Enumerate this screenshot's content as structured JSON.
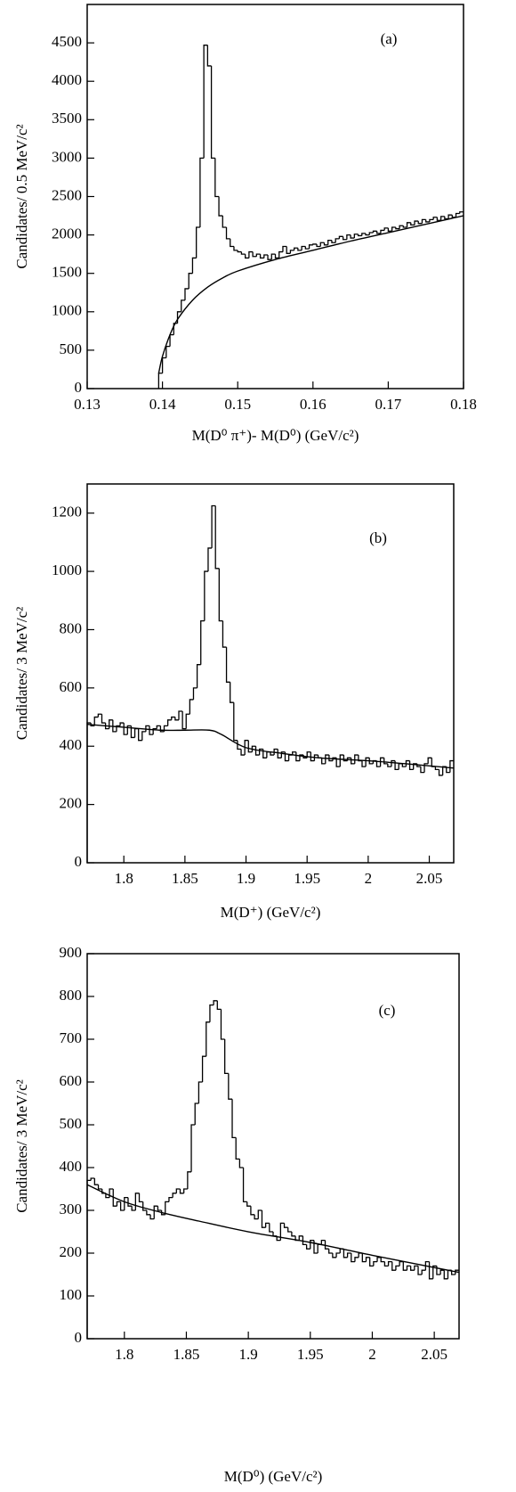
{
  "chart_data": [
    {
      "type": "histogram",
      "annotation": "(a)",
      "y_label": "Candidates/ 0.5 MeV/c²",
      "x_label": "M(D⁰ π⁺)- M(D⁰) (GeV/c²)",
      "color": "#000000",
      "xlim": [
        0.13,
        0.18
      ],
      "ylim": [
        0,
        5000
      ],
      "xticks": [
        0.13,
        0.14,
        0.15,
        0.16,
        0.17,
        0.18
      ],
      "yticks": [
        0,
        500,
        1000,
        1500,
        2000,
        2500,
        3000,
        3500,
        4000,
        4500
      ],
      "bins": [
        0.1395,
        0.14,
        0.1405,
        0.141,
        0.1415,
        0.142,
        0.1425,
        0.143,
        0.1435,
        0.144,
        0.1445,
        0.145,
        0.1455,
        0.146,
        0.1465,
        0.147,
        0.1475,
        0.148,
        0.1485,
        0.149,
        0.1495,
        0.15,
        0.1505,
        0.151,
        0.1515,
        0.152,
        0.1525,
        0.153,
        0.1535,
        0.154,
        0.1545,
        0.155,
        0.1555,
        0.156,
        0.1565,
        0.157,
        0.1575,
        0.158,
        0.1585,
        0.159,
        0.1595,
        0.16,
        0.1605,
        0.161,
        0.1615,
        0.162,
        0.1625,
        0.163,
        0.1635,
        0.164,
        0.1645,
        0.165,
        0.1655,
        0.166,
        0.1665,
        0.167,
        0.1675,
        0.168,
        0.1685,
        0.169,
        0.1695,
        0.17,
        0.1705,
        0.171,
        0.1715,
        0.172,
        0.1725,
        0.173,
        0.1735,
        0.174,
        0.1745,
        0.175,
        0.1755,
        0.176,
        0.1765,
        0.177,
        0.1775,
        0.178,
        0.1785,
        0.179,
        0.1795,
        0.18
      ],
      "values": [
        200,
        400,
        550,
        700,
        850,
        1000,
        1150,
        1300,
        1500,
        1700,
        2100,
        3000,
        4470,
        4200,
        3000,
        2500,
        2250,
        2100,
        1950,
        1850,
        1800,
        1780,
        1750,
        1700,
        1780,
        1720,
        1750,
        1700,
        1740,
        1680,
        1750,
        1700,
        1780,
        1850,
        1760,
        1800,
        1830,
        1800,
        1850,
        1820,
        1870,
        1880,
        1850,
        1900,
        1870,
        1930,
        1900,
        1950,
        1980,
        1940,
        2000,
        1960,
        2010,
        1990,
        2020,
        2000,
        2030,
        2050,
        2020,
        2060,
        2090,
        2050,
        2100,
        2080,
        2120,
        2100,
        2160,
        2130,
        2180,
        2150,
        2200,
        2170,
        2200,
        2230,
        2190,
        2240,
        2210,
        2260,
        2230,
        2280,
        2300
      ],
      "fit": {
        "x": [
          0.1395,
          0.14,
          0.141,
          0.142,
          0.144,
          0.146,
          0.148,
          0.15,
          0.155,
          0.16,
          0.165,
          0.17,
          0.175,
          0.18
        ],
        "values": [
          200,
          420,
          700,
          900,
          1150,
          1320,
          1440,
          1530,
          1680,
          1800,
          1920,
          2030,
          2140,
          2250
        ]
      }
    },
    {
      "type": "histogram",
      "annotation": "(b)",
      "y_label": "Candidates/ 3 MeV/c²",
      "x_label": "M(D⁺) (GeV/c²)",
      "color": "#000000",
      "xlim": [
        1.77,
        2.07
      ],
      "ylim": [
        0,
        1300
      ],
      "xticks": [
        1.8,
        1.85,
        1.9,
        1.95,
        2,
        2.05
      ],
      "yticks": [
        0,
        200,
        400,
        600,
        800,
        1000,
        1200
      ],
      "bins": [
        1.77,
        1.773,
        1.776,
        1.779,
        1.782,
        1.785,
        1.788,
        1.791,
        1.794,
        1.797,
        1.8,
        1.803,
        1.806,
        1.809,
        1.812,
        1.815,
        1.818,
        1.821,
        1.824,
        1.827,
        1.83,
        1.833,
        1.836,
        1.839,
        1.842,
        1.845,
        1.848,
        1.851,
        1.854,
        1.857,
        1.86,
        1.863,
        1.866,
        1.869,
        1.872,
        1.875,
        1.878,
        1.881,
        1.884,
        1.887,
        1.89,
        1.893,
        1.896,
        1.899,
        1.902,
        1.905,
        1.908,
        1.911,
        1.914,
        1.917,
        1.92,
        1.923,
        1.926,
        1.929,
        1.932,
        1.935,
        1.938,
        1.941,
        1.944,
        1.947,
        1.95,
        1.953,
        1.956,
        1.959,
        1.962,
        1.965,
        1.968,
        1.971,
        1.974,
        1.977,
        1.98,
        1.983,
        1.986,
        1.989,
        1.992,
        1.995,
        1.998,
        2.001,
        2.004,
        2.007,
        2.01,
        2.013,
        2.016,
        2.019,
        2.022,
        2.025,
        2.028,
        2.031,
        2.034,
        2.037,
        2.04,
        2.043,
        2.046,
        2.049,
        2.052,
        2.055,
        2.058,
        2.061,
        2.064,
        2.067,
        2.07
      ],
      "values": [
        480,
        470,
        500,
        510,
        480,
        460,
        490,
        450,
        470,
        480,
        440,
        470,
        430,
        460,
        420,
        450,
        470,
        440,
        460,
        470,
        450,
        470,
        490,
        500,
        490,
        520,
        460,
        510,
        560,
        600,
        680,
        830,
        1000,
        1080,
        1225,
        1010,
        830,
        740,
        620,
        550,
        420,
        390,
        370,
        420,
        380,
        400,
        370,
        390,
        360,
        380,
        370,
        390,
        360,
        380,
        350,
        370,
        380,
        350,
        370,
        360,
        380,
        350,
        370,
        360,
        340,
        370,
        350,
        360,
        330,
        370,
        350,
        360,
        340,
        370,
        350,
        330,
        360,
        340,
        350,
        330,
        360,
        340,
        330,
        350,
        320,
        340,
        330,
        350,
        320,
        340,
        330,
        310,
        340,
        360,
        330,
        320,
        300,
        330,
        310,
        350
      ],
      "fit": {
        "x": [
          1.77,
          1.8,
          1.83,
          1.85,
          1.87,
          1.88,
          1.9,
          1.93,
          1.96,
          2.0,
          2.03,
          2.07
        ],
        "values": [
          475,
          465,
          455,
          455,
          455,
          440,
          395,
          375,
          360,
          350,
          340,
          325
        ]
      }
    },
    {
      "type": "histogram",
      "annotation": "(c)",
      "y_label": "Candidates/ 3 MeV/c²",
      "x_label": "M(D⁰) (GeV/c²)",
      "color": "#000000",
      "xlim": [
        1.77,
        2.07
      ],
      "ylim": [
        0,
        900
      ],
      "xticks": [
        1.8,
        1.85,
        1.9,
        1.95,
        2,
        2.05
      ],
      "yticks": [
        0,
        100,
        200,
        300,
        400,
        500,
        600,
        700,
        800,
        900
      ],
      "bins": [
        1.77,
        1.773,
        1.776,
        1.779,
        1.782,
        1.785,
        1.788,
        1.791,
        1.794,
        1.797,
        1.8,
        1.803,
        1.806,
        1.809,
        1.812,
        1.815,
        1.818,
        1.821,
        1.824,
        1.827,
        1.83,
        1.833,
        1.836,
        1.839,
        1.842,
        1.845,
        1.848,
        1.851,
        1.854,
        1.857,
        1.86,
        1.863,
        1.866,
        1.869,
        1.872,
        1.875,
        1.878,
        1.881,
        1.884,
        1.887,
        1.89,
        1.893,
        1.896,
        1.899,
        1.902,
        1.905,
        1.908,
        1.911,
        1.914,
        1.917,
        1.92,
        1.923,
        1.926,
        1.929,
        1.932,
        1.935,
        1.938,
        1.941,
        1.944,
        1.947,
        1.95,
        1.953,
        1.956,
        1.959,
        1.962,
        1.965,
        1.968,
        1.971,
        1.974,
        1.977,
        1.98,
        1.983,
        1.986,
        1.989,
        1.992,
        1.995,
        1.998,
        2.001,
        2.004,
        2.007,
        2.01,
        2.013,
        2.016,
        2.019,
        2.022,
        2.025,
        2.028,
        2.031,
        2.034,
        2.037,
        2.04,
        2.043,
        2.046,
        2.049,
        2.052,
        2.055,
        2.058,
        2.061,
        2.064,
        2.067,
        2.07
      ],
      "values": [
        370,
        375,
        360,
        350,
        340,
        330,
        350,
        310,
        320,
        300,
        330,
        310,
        300,
        340,
        320,
        300,
        290,
        280,
        310,
        300,
        290,
        320,
        330,
        340,
        350,
        340,
        350,
        390,
        500,
        550,
        600,
        660,
        740,
        780,
        790,
        770,
        700,
        620,
        560,
        470,
        420,
        400,
        320,
        310,
        290,
        280,
        300,
        260,
        270,
        250,
        240,
        230,
        270,
        260,
        250,
        240,
        230,
        240,
        220,
        210,
        230,
        200,
        220,
        230,
        210,
        200,
        190,
        200,
        210,
        190,
        200,
        180,
        190,
        200,
        180,
        190,
        170,
        180,
        190,
        180,
        170,
        180,
        160,
        170,
        180,
        160,
        170,
        160,
        170,
        150,
        160,
        180,
        140,
        170,
        150,
        160,
        140,
        160,
        150,
        160
      ],
      "fit": {
        "x": [
          1.77,
          1.8,
          1.83,
          1.86,
          1.9,
          1.95,
          2.0,
          2.07
        ],
        "values": [
          360,
          320,
          295,
          275,
          250,
          225,
          195,
          155
        ]
      }
    }
  ]
}
